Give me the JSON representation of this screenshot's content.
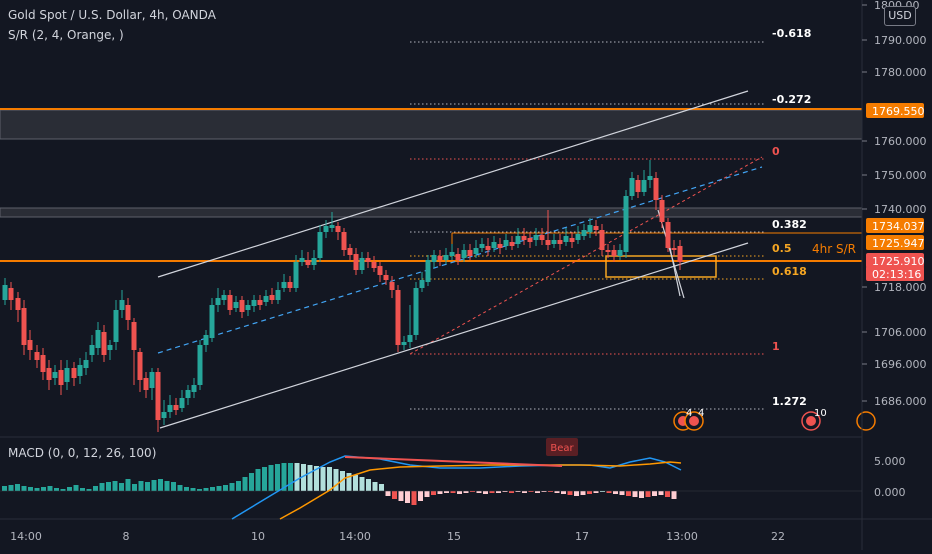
{
  "header": {
    "symbol_line": "Gold Spot / U.S. Dollar, 4h, OANDA",
    "indicator_line": "S/R (2, 4, Orange, )",
    "currency_button": "USD"
  },
  "price_axis": {
    "ticks": [
      "1800.00",
      "1790.000",
      "1780.000",
      "1760.000",
      "1750.000",
      "1740.000",
      "1718.000",
      "1706.000",
      "1696.000",
      "1686.000"
    ],
    "badges": [
      {
        "text": "1769.550",
        "bg": "#f57c00",
        "fg": "#ffffff"
      },
      {
        "text": "1734.037",
        "bg": "#f57c00",
        "fg": "#ffffff"
      },
      {
        "text": "1725.947",
        "bg": "#f57c00",
        "fg": "#ffffff"
      },
      {
        "text": "1725.910",
        "bg": "#ef5350",
        "fg": "#ffffff"
      },
      {
        "text": "02:13:16",
        "bg": "#ef5350",
        "fg": "#ffffff"
      }
    ]
  },
  "fib_levels": [
    {
      "label": "-0.618",
      "color": "#ffffff"
    },
    {
      "label": "-0.272",
      "color": "#ffffff"
    },
    {
      "label": "0",
      "color": "#ef5350"
    },
    {
      "label": "0.382",
      "color": "#ffffff"
    },
    {
      "label": "0.5",
      "color": "#f5a623"
    },
    {
      "label": "0.618",
      "color": "#f5a623"
    },
    {
      "label": "1",
      "color": "#ef5350"
    },
    {
      "label": "1.272",
      "color": "#ffffff"
    }
  ],
  "sr_label": "4hr S/R",
  "events": {
    "badge_a": "4",
    "badge_b": "4",
    "badge_c": "10"
  },
  "macd": {
    "title": "MACD (0, 0, 12, 26, 100)",
    "ticks": [
      "5.000",
      "0.000"
    ],
    "bear_label": "Bear"
  },
  "time_axis": {
    "ticks": [
      "14:00",
      "8",
      "10",
      "14:00",
      "15",
      "17",
      "13:00",
      "22"
    ]
  },
  "colors": {
    "up": "#26a69a",
    "down": "#ef5350",
    "background": "#131722",
    "sr_orange": "#f57c00"
  }
}
